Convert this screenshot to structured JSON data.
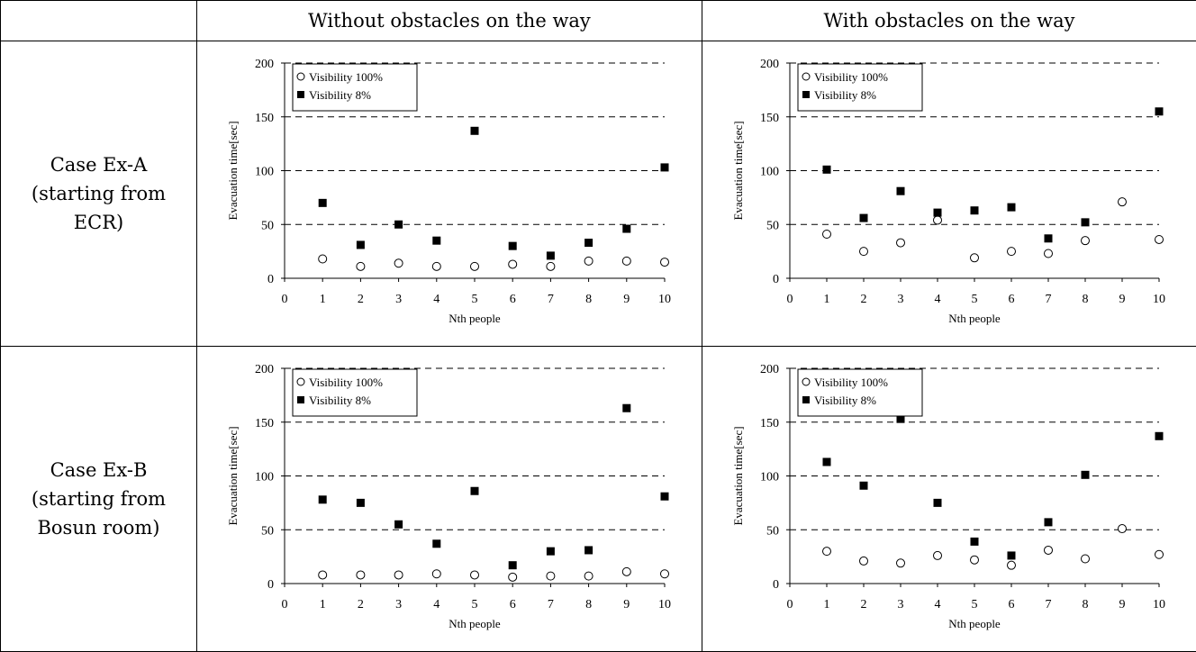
{
  "table": {
    "columns": [
      "Without obstacles on the way",
      "With obstacles on the way"
    ],
    "rows": [
      {
        "label_lines": [
          "Case Ex-A",
          "(starting from",
          "ECR)"
        ]
      },
      {
        "label_lines": [
          "Case Ex-B",
          "(starting from",
          "Bosun room)"
        ]
      }
    ]
  },
  "chart_data": [
    {
      "type": "scatter",
      "row": "Case Ex-A",
      "column": "Without obstacles on the way",
      "xlabel": "Nth people",
      "ylabel": "Evacuation time[sec]",
      "xlim": [
        0,
        10
      ],
      "ylim": [
        0,
        200
      ],
      "x_ticks": [
        0,
        1,
        2,
        3,
        4,
        5,
        6,
        7,
        8,
        9,
        10
      ],
      "y_ticks": [
        0,
        50,
        100,
        150,
        200
      ],
      "grid": "horizontal dashed",
      "legend_position": "top-left",
      "x": [
        1,
        2,
        3,
        4,
        5,
        6,
        7,
        8,
        9,
        10
      ],
      "series": [
        {
          "name": "Visibility 100%",
          "marker": "open-circle",
          "values": [
            18,
            11,
            14,
            11,
            11,
            13,
            11,
            16,
            16,
            15
          ]
        },
        {
          "name": "Visibility 8%",
          "marker": "filled-square",
          "values": [
            70,
            31,
            50,
            35,
            137,
            30,
            21,
            33,
            46,
            103
          ]
        }
      ]
    },
    {
      "type": "scatter",
      "row": "Case Ex-A",
      "column": "With obstacles on the way",
      "xlabel": "Nth people",
      "ylabel": "Evacuation time[sec]",
      "xlim": [
        0,
        10
      ],
      "ylim": [
        0,
        200
      ],
      "x_ticks": [
        0,
        1,
        2,
        3,
        4,
        5,
        6,
        7,
        8,
        9,
        10
      ],
      "y_ticks": [
        0,
        50,
        100,
        150,
        200
      ],
      "grid": "horizontal dashed",
      "legend_position": "top-left",
      "x": [
        1,
        2,
        3,
        4,
        5,
        6,
        7,
        8,
        9,
        10
      ],
      "series": [
        {
          "name": "Visibility 100%",
          "marker": "open-circle",
          "values": [
            41,
            25,
            33,
            54,
            19,
            25,
            23,
            35,
            71,
            36
          ]
        },
        {
          "name": "Visibility 8%",
          "marker": "filled-square",
          "values": [
            101,
            56,
            81,
            61,
            63,
            66,
            37,
            52,
            null,
            155
          ]
        }
      ]
    },
    {
      "type": "scatter",
      "row": "Case Ex-B",
      "column": "Without obstacles on the way",
      "xlabel": "Nth people",
      "ylabel": "Evacuation time[sec]",
      "xlim": [
        0,
        10
      ],
      "ylim": [
        0,
        200
      ],
      "x_ticks": [
        0,
        1,
        2,
        3,
        4,
        5,
        6,
        7,
        8,
        9,
        10
      ],
      "y_ticks": [
        0,
        50,
        100,
        150,
        200
      ],
      "grid": "horizontal dashed",
      "legend_position": "top-left",
      "x": [
        1,
        2,
        3,
        4,
        5,
        6,
        7,
        8,
        9,
        10
      ],
      "series": [
        {
          "name": "Visibility 100%",
          "marker": "open-circle",
          "values": [
            8,
            8,
            8,
            9,
            8,
            6,
            7,
            7,
            11,
            9
          ]
        },
        {
          "name": "Visibility 8%",
          "marker": "filled-square",
          "values": [
            78,
            75,
            55,
            37,
            86,
            17,
            30,
            31,
            163,
            81
          ]
        }
      ]
    },
    {
      "type": "scatter",
      "row": "Case Ex-B",
      "column": "With obstacles on the way",
      "xlabel": "Nth people",
      "ylabel": "Evacuation time[sec]",
      "xlim": [
        0,
        10
      ],
      "ylim": [
        0,
        200
      ],
      "x_ticks": [
        0,
        1,
        2,
        3,
        4,
        5,
        6,
        7,
        8,
        9,
        10
      ],
      "y_ticks": [
        0,
        50,
        100,
        150,
        200
      ],
      "grid": "horizontal dashed",
      "legend_position": "top-left",
      "x": [
        1,
        2,
        3,
        4,
        5,
        6,
        7,
        8,
        9,
        10
      ],
      "series": [
        {
          "name": "Visibility 100%",
          "marker": "open-circle",
          "values": [
            30,
            21,
            19,
            26,
            22,
            17,
            31,
            23,
            51,
            27
          ]
        },
        {
          "name": "Visibility 8%",
          "marker": "filled-square",
          "values": [
            113,
            91,
            153,
            75,
            39,
            26,
            57,
            101,
            null,
            137
          ]
        }
      ]
    }
  ]
}
